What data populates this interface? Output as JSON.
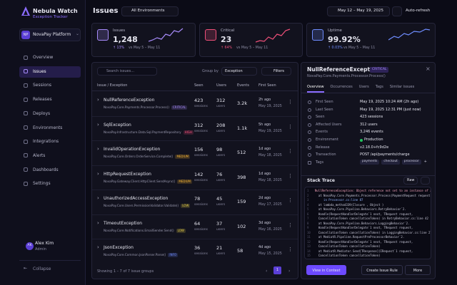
{
  "sidebar": {
    "app_name": "Nebula Watch",
    "app_subtitle": "Exception Tracker",
    "workspace": {
      "initials": "NP",
      "name": "NovaPay Platform"
    },
    "nav": [
      {
        "label": "Overview"
      },
      {
        "label": "Issues",
        "active": true
      },
      {
        "label": "Sessions"
      },
      {
        "label": "Releases"
      },
      {
        "label": "Deploys"
      },
      {
        "label": "Environments"
      },
      {
        "label": "Integrations"
      },
      {
        "label": "Alerts"
      },
      {
        "label": "Dashboards"
      },
      {
        "label": "Settings"
      }
    ],
    "user": {
      "initials": "AK",
      "name": "Alex Kim",
      "role": "Admin"
    },
    "collapse": "Collapse"
  },
  "header": {
    "title": "Issues",
    "environment": "All Environments",
    "date_range": "May 12 – May 19, 2025",
    "auto_refresh": "Auto-refresh"
  },
  "stats": [
    {
      "label": "Issues",
      "value": "1,248",
      "change": "↑ 13%",
      "compare": "vs May 5 – May 11",
      "color": "#a78bfa"
    },
    {
      "label": "Critical",
      "value": "23",
      "change": "↑ 64%",
      "compare": "vs May 5 – May 11",
      "color": "#f0507a"
    },
    {
      "label": "Uptime",
      "value": "99.92%",
      "change": "↑ 0.03%",
      "compare": "vs May 5 – May 11",
      "color": "#6f8dff"
    }
  ],
  "issues": {
    "search_placeholder": "Search issues...",
    "group_by_label": "Group by",
    "group_by": "Exception",
    "filters": "Filters",
    "columns": [
      "Issue / Exception",
      "Seen",
      "Users",
      "Events",
      "First Seen"
    ],
    "seen_unit": "sessions",
    "users_unit": "users",
    "rows": [
      {
        "name": "NullReferenceException",
        "source": "NovaPay.Core.Payments.Processor.Process()",
        "severity": "CRITICAL",
        "badge_color": "#a78bfa",
        "seen": 423,
        "users": 312,
        "events": "3.2k",
        "age": "2h ago",
        "date": "May 19, 2025"
      },
      {
        "name": "SqlException",
        "source": "NovaPay.Infrastructure.Data.Sql.PaymentRepository",
        "severity": "HIGH",
        "badge_color": "#f0507a",
        "seen": 312,
        "users": 208,
        "events": "1.1k",
        "age": "5h ago",
        "date": "May 19, 2025"
      },
      {
        "name": "InvalidOperationException",
        "source": "NovaPay.Core.Orders.OrderService.Complete()",
        "severity": "MEDIUM",
        "badge_color": "#f2b233",
        "seen": 156,
        "users": 98,
        "events": "512",
        "age": "1d ago",
        "date": "May 18, 2025"
      },
      {
        "name": "HttpRequestException",
        "source": "NovaPay.Gateway.Client.HttpClient.SendAsync()",
        "severity": "MEDIUM",
        "badge_color": "#f2b233",
        "seen": 142,
        "users": 76,
        "events": "398",
        "age": "1d ago",
        "date": "May 18, 2025"
      },
      {
        "name": "UnauthorizedAccessException",
        "source": "NovaPay.Core.Users.PermissionValidator.Validate()",
        "severity": "LOW",
        "badge_color": "#e8d14a",
        "seen": 78,
        "users": 45,
        "events": "159",
        "age": "2d ago",
        "date": "May 17, 2025"
      },
      {
        "name": "TimeoutException",
        "source": "NovaPay.Core.Notifications.EmailSender.Send()",
        "severity": "LOW",
        "badge_color": "#e8d14a",
        "seen": 64,
        "users": 37,
        "events": "102",
        "age": "3d ago",
        "date": "May 16, 2025"
      },
      {
        "name": "JsonException",
        "source": "NovaPay.Core.Common.JsonParser.Parse()",
        "severity": "INFO",
        "badge_color": "#6f8dff",
        "seen": 36,
        "users": 21,
        "events": "58",
        "age": "4d ago",
        "date": "May 15, 2025"
      }
    ],
    "footer": "Showing 1 – 7 of 7 issue groups",
    "page": "1"
  },
  "detail": {
    "title": "NullReferenceException",
    "severity": "CRITICAL",
    "source": "NovaPay.Core.Payments.Processor.Process()",
    "tabs": [
      {
        "label": "Overview",
        "active": true
      },
      {
        "label": "Occurrences"
      },
      {
        "label": "Users"
      },
      {
        "label": "Tags"
      },
      {
        "label": "Similar issues"
      }
    ],
    "fields": [
      {
        "label": "First Seen",
        "value": "May 19, 2025 10:24 AM (2h ago)"
      },
      {
        "label": "Last Seen",
        "value": "May 19, 2025 12:31 PM (just now)"
      },
      {
        "label": "Seen",
        "value": "423 sessions"
      },
      {
        "label": "Affected Users",
        "value": "312 users"
      },
      {
        "label": "Events",
        "value": "3,246 events"
      },
      {
        "label": "Environment",
        "value": "Production",
        "dot": "#22c55e"
      },
      {
        "label": "Release",
        "value": "v2.18.0+fc9d2e"
      },
      {
        "label": "Transaction",
        "value": "POST /api/payments/charge"
      }
    ],
    "tags": {
      "label": "Tags",
      "items": [
        "payments",
        "checkout",
        "processor"
      ],
      "more": "+"
    },
    "stack_title": "Stack Trace",
    "raw": "Raw",
    "stack": [
      {
        "n": "1",
        "text": "NullReferenceException: Object reference not set to an instance of an object."
      },
      {
        "n": "2",
        "text": "  at NovaPay.Core.Payments.Processor.Process(PaymentRequest request)"
      },
      {
        "n": "3",
        "text": "     in Processor.cs:line 87"
      },
      {
        "n": "4",
        "text": "  at lambda_method339(Closure , Object )"
      },
      {
        "n": "5",
        "text": "  at NovaPay.Core.Pipeline.Behaviors.RetryBehavior`2."
      },
      {
        "n": "6",
        "text": "  Handle(RequestHandlerDelegate`1 next, TRequest request,"
      },
      {
        "n": "7",
        "text": "  CancellationToken cancellationToken) in RetryBehavior.cs:line 42"
      },
      {
        "n": "8",
        "text": "  at NovaPay.Core.Pipeline.Behaviors.LoggingBehavior`2."
      },
      {
        "n": "9",
        "text": "  Handle(RequestHandlerDelegate`1 next, TRequest request,"
      },
      {
        "n": "10",
        "text": "  CancellationToken cancellationToken) in LoggingBehavior.cs:line 27"
      },
      {
        "n": "11",
        "text": "  at MediatR.Pipeline.RequestPreProcessorBehavior`2."
      },
      {
        "n": "12",
        "text": "  Handle(RequestHandlerDelegate`1 next, TRequest request,"
      },
      {
        "n": "13",
        "text": "  CancellationToken cancellationToken)"
      },
      {
        "n": "14",
        "text": "  at MediatR.Mediator.Send[TResponse](IRequest`1 request,"
      },
      {
        "n": "15",
        "text": "  CancellationToken cancellationToken)"
      }
    ],
    "actions": [
      "View in Context",
      "Create Issue Rule",
      "More"
    ]
  }
}
